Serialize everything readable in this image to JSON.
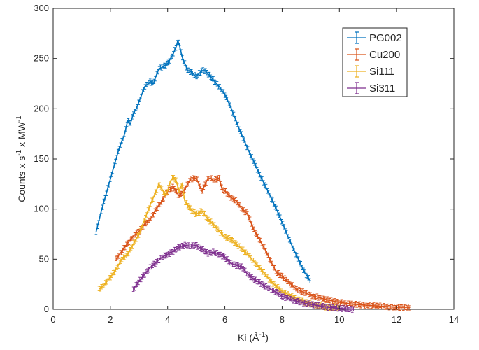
{
  "chart_data": {
    "type": "line",
    "title": "",
    "xlabel": "Ki (Å",
    "xlabel_sup": "-1",
    "xlabel_close": ")",
    "ylabel": "Counts x s",
    "ylabel_sup1": "-1",
    "ylabel_mid": " x MW",
    "ylabel_sup2": "-1",
    "xlim": [
      0,
      14
    ],
    "ylim": [
      0,
      300
    ],
    "xticks": [
      0,
      2,
      4,
      6,
      8,
      10,
      12,
      14
    ],
    "yticks": [
      0,
      50,
      100,
      150,
      200,
      250,
      300
    ],
    "grid": false,
    "legend_position": "top-right",
    "error_bars": true,
    "series": [
      {
        "name": "PG002",
        "color": "#0072BD",
        "x": [
          1.5,
          1.7,
          1.9,
          2.1,
          2.3,
          2.5,
          2.6,
          2.7,
          2.8,
          2.9,
          3.0,
          3.2,
          3.4,
          3.5,
          3.6,
          3.7,
          3.8,
          3.9,
          4.0,
          4.1,
          4.2,
          4.3,
          4.35,
          4.4,
          4.5,
          4.6,
          4.7,
          4.8,
          5.0,
          5.2,
          5.3,
          5.5,
          5.8,
          6.0,
          6.2,
          6.5,
          6.8,
          7.0,
          7.2,
          7.4,
          7.6,
          7.8,
          8.0,
          8.2,
          8.4,
          8.6,
          8.8,
          9.0
        ],
        "y": [
          77,
          100,
          120,
          140,
          160,
          175,
          188,
          185,
          195,
          200,
          207,
          222,
          227,
          225,
          233,
          240,
          241,
          243,
          245,
          250,
          255,
          262,
          267,
          265,
          252,
          245,
          238,
          237,
          232,
          238,
          238,
          232,
          222,
          214,
          202,
          180,
          160,
          148,
          135,
          124,
          112,
          100,
          87,
          73,
          60,
          48,
          36,
          28
        ]
      },
      {
        "name": "Cu200",
        "color": "#D95319",
        "x": [
          2.2,
          2.5,
          2.8,
          3.0,
          3.2,
          3.4,
          3.6,
          3.8,
          4.0,
          4.2,
          4.4,
          4.6,
          4.8,
          5.0,
          5.2,
          5.4,
          5.5,
          5.6,
          5.7,
          5.8,
          5.9,
          6.0,
          6.2,
          6.4,
          6.6,
          6.8,
          7.0,
          7.2,
          7.4,
          7.6,
          7.8,
          8.0,
          8.2,
          8.5,
          9.0,
          9.5,
          10.0,
          10.5,
          11.0,
          11.5,
          12.0,
          12.5
        ],
        "y": [
          50,
          62,
          73,
          78,
          85,
          90,
          100,
          108,
          118,
          122,
          113,
          120,
          130,
          131,
          118,
          130,
          131,
          128,
          130,
          131,
          120,
          118,
          112,
          108,
          100,
          95,
          80,
          70,
          60,
          48,
          37,
          33,
          28,
          20,
          14,
          10,
          7,
          5,
          4,
          3,
          2,
          2
        ]
      },
      {
        "name": "Si111",
        "color": "#EDB120",
        "x": [
          1.6,
          1.8,
          2.0,
          2.2,
          2.4,
          2.6,
          2.8,
          3.0,
          3.2,
          3.4,
          3.6,
          3.7,
          3.8,
          3.9,
          4.0,
          4.1,
          4.2,
          4.3,
          4.4,
          4.5,
          4.6,
          4.8,
          5.0,
          5.2,
          5.4,
          5.6,
          5.8,
          6.0,
          6.2,
          6.4,
          6.6,
          6.8,
          7.0,
          7.2,
          7.4,
          7.6,
          7.8,
          8.0,
          8.4,
          8.8,
          9.2,
          9.6,
          10.0
        ],
        "y": [
          20,
          25,
          32,
          40,
          50,
          55,
          65,
          75,
          90,
          105,
          118,
          125,
          120,
          115,
          118,
          128,
          132,
          128,
          118,
          125,
          108,
          100,
          95,
          98,
          90,
          85,
          78,
          72,
          70,
          65,
          60,
          55,
          48,
          42,
          35,
          28,
          23,
          18,
          12,
          7,
          4,
          2,
          1
        ]
      },
      {
        "name": "Si311",
        "color": "#7E2F8E",
        "x": [
          2.8,
          3.0,
          3.2,
          3.4,
          3.6,
          3.8,
          4.0,
          4.2,
          4.4,
          4.6,
          4.8,
          5.0,
          5.2,
          5.4,
          5.6,
          5.8,
          6.0,
          6.2,
          6.4,
          6.6,
          6.8,
          7.0,
          7.2,
          7.4,
          7.6,
          7.8,
          8.0,
          8.4,
          8.8,
          9.2,
          9.6,
          10.0,
          10.5
        ],
        "y": [
          20,
          28,
          35,
          42,
          47,
          52,
          55,
          58,
          62,
          64,
          63,
          64,
          60,
          56,
          57,
          55,
          52,
          46,
          44,
          42,
          35,
          30,
          27,
          23,
          20,
          17,
          13,
          9,
          6,
          4,
          2,
          1,
          0
        ]
      }
    ]
  }
}
